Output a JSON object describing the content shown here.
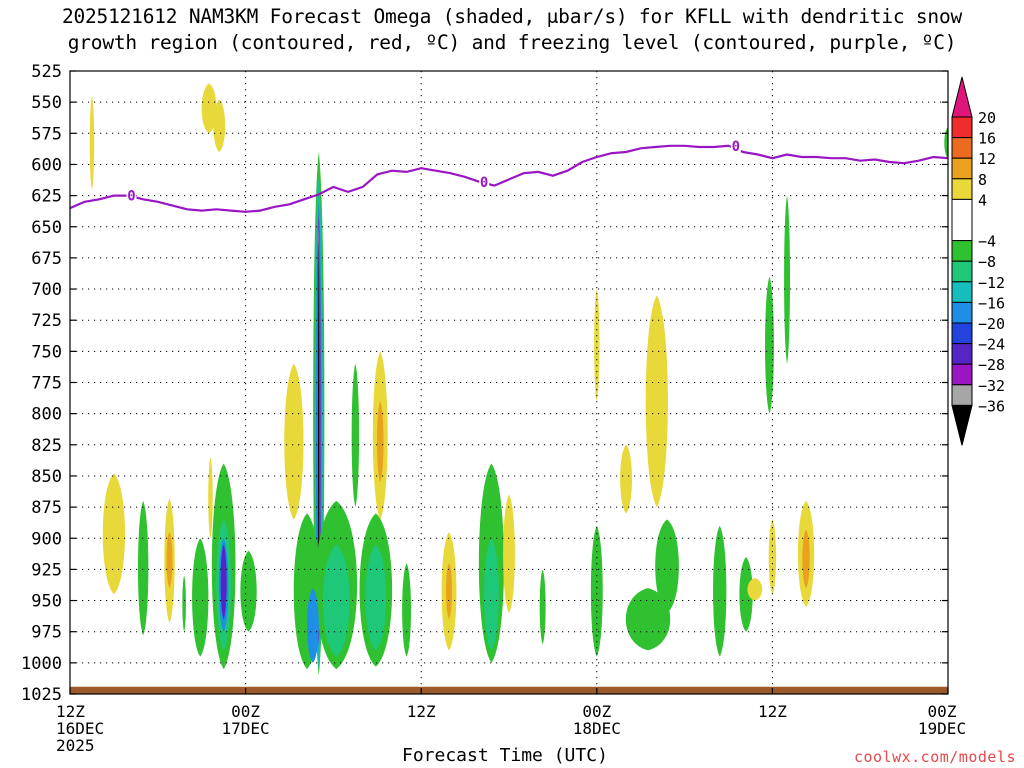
{
  "chart_data": {
    "type": "time-height cross-section",
    "title_line1": "2025121612 NAM3KM Forecast Omega (shaded, μbar/s) for KFLL with dendritic snow",
    "title_line2": "growth region (contoured, red, ºC) and freezing level (contoured, purple, ºC)",
    "xlabel": "Forecast Time (UTC)",
    "x_ticks": [
      {
        "hour": 0,
        "lines": [
          "12Z",
          "16DEC",
          "2025"
        ]
      },
      {
        "hour": 12,
        "lines": [
          "00Z",
          "17DEC"
        ]
      },
      {
        "hour": 24,
        "lines": [
          "12Z"
        ]
      },
      {
        "hour": 36,
        "lines": [
          "00Z",
          "18DEC"
        ]
      },
      {
        "hour": 48,
        "lines": [
          "12Z"
        ]
      },
      {
        "hour": 60,
        "lines": [
          "00Z",
          "19DEC"
        ]
      }
    ],
    "x_range_hours": [
      0,
      60
    ],
    "y_ticks": [
      "525",
      "550",
      "575",
      "600",
      "625",
      "650",
      "675",
      "700",
      "725",
      "750",
      "775",
      "800",
      "825",
      "850",
      "875",
      "900",
      "925",
      "950",
      "975",
      "1000",
      "1025"
    ],
    "y_range_mb": [
      525,
      1025
    ],
    "colorbar": {
      "labels": [
        "20",
        "16",
        "12",
        "8",
        "4",
        "−4",
        "−8",
        "−12",
        "−16",
        "−20",
        "−24",
        "−28",
        "−32",
        "−36"
      ],
      "colors": [
        "#e0157a",
        "#f02c2c",
        "#ec6b1f",
        "#e8a21e",
        "#e8d83a",
        "#ffffff",
        "#2fc12f",
        "#1fc779",
        "#16bdbd",
        "#1e8ee6",
        "#2244dd",
        "#5524c4",
        "#9a16c4",
        "#a6a6a6",
        "#000000"
      ]
    },
    "freezing_level_label": "0",
    "freezing_level": [
      {
        "hour": 0,
        "mb": 635
      },
      {
        "hour": 1,
        "mb": 630
      },
      {
        "hour": 2,
        "mb": 628
      },
      {
        "hour": 3,
        "mb": 625
      },
      {
        "hour": 4,
        "mb": 625
      },
      {
        "hour": 5,
        "mb": 628
      },
      {
        "hour": 6,
        "mb": 630
      },
      {
        "hour": 7,
        "mb": 633
      },
      {
        "hour": 8,
        "mb": 636
      },
      {
        "hour": 9,
        "mb": 637
      },
      {
        "hour": 10,
        "mb": 636
      },
      {
        "hour": 11,
        "mb": 637
      },
      {
        "hour": 12,
        "mb": 638
      },
      {
        "hour": 13,
        "mb": 637
      },
      {
        "hour": 14,
        "mb": 634
      },
      {
        "hour": 15,
        "mb": 632
      },
      {
        "hour": 16,
        "mb": 628
      },
      {
        "hour": 17,
        "mb": 624
      },
      {
        "hour": 18,
        "mb": 618
      },
      {
        "hour": 19,
        "mb": 622
      },
      {
        "hour": 20,
        "mb": 618
      },
      {
        "hour": 21,
        "mb": 608
      },
      {
        "hour": 22,
        "mb": 605
      },
      {
        "hour": 23,
        "mb": 606
      },
      {
        "hour": 24,
        "mb": 603
      },
      {
        "hour": 25,
        "mb": 605
      },
      {
        "hour": 26,
        "mb": 607
      },
      {
        "hour": 27,
        "mb": 610
      },
      {
        "hour": 28,
        "mb": 614
      },
      {
        "hour": 29,
        "mb": 617
      },
      {
        "hour": 30,
        "mb": 612
      },
      {
        "hour": 31,
        "mb": 607
      },
      {
        "hour": 32,
        "mb": 606
      },
      {
        "hour": 33,
        "mb": 609
      },
      {
        "hour": 34,
        "mb": 605
      },
      {
        "hour": 35,
        "mb": 598
      },
      {
        "hour": 36,
        "mb": 594
      },
      {
        "hour": 37,
        "mb": 591
      },
      {
        "hour": 38,
        "mb": 590
      },
      {
        "hour": 39,
        "mb": 587
      },
      {
        "hour": 40,
        "mb": 586
      },
      {
        "hour": 41,
        "mb": 585
      },
      {
        "hour": 42,
        "mb": 585
      },
      {
        "hour": 43,
        "mb": 586
      },
      {
        "hour": 44,
        "mb": 586
      },
      {
        "hour": 45,
        "mb": 585
      },
      {
        "hour": 46,
        "mb": 590
      },
      {
        "hour": 47,
        "mb": 592
      },
      {
        "hour": 48,
        "mb": 595
      },
      {
        "hour": 49,
        "mb": 592
      },
      {
        "hour": 50,
        "mb": 594
      },
      {
        "hour": 51,
        "mb": 594
      },
      {
        "hour": 52,
        "mb": 595
      },
      {
        "hour": 53,
        "mb": 595
      },
      {
        "hour": 54,
        "mb": 597
      },
      {
        "hour": 55,
        "mb": 596
      },
      {
        "hour": 56,
        "mb": 598
      },
      {
        "hour": 57,
        "mb": 599
      },
      {
        "hour": 58,
        "mb": 597
      },
      {
        "hour": 59,
        "mb": 594
      },
      {
        "hour": 60,
        "mb": 595
      }
    ],
    "omega_features": [
      {
        "hour": 1.5,
        "top": 545,
        "bot": 620,
        "w": 0.15,
        "color": "#e8d83a"
      },
      {
        "hour": 9.5,
        "top": 535,
        "bot": 575,
        "w": 0.5,
        "color": "#e8d83a"
      },
      {
        "hour": 10.2,
        "top": 548,
        "bot": 590,
        "w": 0.4,
        "color": "#e8d83a"
      },
      {
        "hour": 3.0,
        "top": 848,
        "bot": 945,
        "w": 0.75,
        "color": "#e8d83a"
      },
      {
        "hour": 5.0,
        "top": 870,
        "bot": 978,
        "w": 0.35,
        "color": "#2fc12f"
      },
      {
        "hour": 6.8,
        "top": 868,
        "bot": 968,
        "w": 0.35,
        "color": "#e8d83a"
      },
      {
        "hour": 6.8,
        "top": 895,
        "bot": 940,
        "w": 0.2,
        "color": "#e8a21e"
      },
      {
        "hour": 7.8,
        "top": 930,
        "bot": 975,
        "w": 0.12,
        "color": "#2fc12f"
      },
      {
        "hour": 9.6,
        "top": 835,
        "bot": 900,
        "w": 0.15,
        "color": "#e8d83a"
      },
      {
        "hour": 10.5,
        "top": 840,
        "bot": 1005,
        "w": 0.8,
        "color": "#2fc12f"
      },
      {
        "hour": 10.5,
        "top": 885,
        "bot": 990,
        "w": 0.5,
        "color": "#1fc779"
      },
      {
        "hour": 10.5,
        "top": 900,
        "bot": 975,
        "w": 0.32,
        "color": "#1e8ee6"
      },
      {
        "hour": 10.5,
        "top": 905,
        "bot": 965,
        "w": 0.2,
        "color": "#5524c4"
      },
      {
        "hour": 8.9,
        "top": 900,
        "bot": 995,
        "w": 0.55,
        "color": "#2fc12f"
      },
      {
        "hour": 12.2,
        "top": 910,
        "bot": 975,
        "w": 0.55,
        "color": "#2fc12f"
      },
      {
        "hour": 17.0,
        "top": 590,
        "bot": 1010,
        "w": 0.38,
        "color": "#2fc12f"
      },
      {
        "hour": 17.0,
        "top": 610,
        "bot": 1005,
        "w": 0.28,
        "color": "#16bdbd"
      },
      {
        "hour": 17.0,
        "top": 630,
        "bot": 990,
        "w": 0.2,
        "color": "#1e8ee6"
      },
      {
        "hour": 17.0,
        "top": 640,
        "bot": 985,
        "w": 0.13,
        "color": "#9a16c4"
      },
      {
        "hour": 17.0,
        "top": 650,
        "bot": 975,
        "w": 0.08,
        "color": "#a6a6a6"
      },
      {
        "hour": 17.0,
        "top": 660,
        "bot": 960,
        "w": 0.05,
        "color": "#000000"
      },
      {
        "hour": 15.3,
        "top": 760,
        "bot": 885,
        "w": 0.65,
        "color": "#e8d83a"
      },
      {
        "hour": 16.2,
        "top": 880,
        "bot": 1005,
        "w": 0.9,
        "color": "#2fc12f"
      },
      {
        "hour": 18.2,
        "top": 870,
        "bot": 1005,
        "w": 1.4,
        "color": "#2fc12f"
      },
      {
        "hour": 18.2,
        "top": 905,
        "bot": 995,
        "w": 0.9,
        "color": "#1fc779"
      },
      {
        "hour": 16.6,
        "top": 940,
        "bot": 1000,
        "w": 0.4,
        "color": "#1e8ee6"
      },
      {
        "hour": 21.2,
        "top": 750,
        "bot": 885,
        "w": 0.5,
        "color": "#e8d83a"
      },
      {
        "hour": 21.2,
        "top": 790,
        "bot": 855,
        "w": 0.22,
        "color": "#e8a21e"
      },
      {
        "hour": 19.5,
        "top": 760,
        "bot": 875,
        "w": 0.25,
        "color": "#2fc12f"
      },
      {
        "hour": 20.9,
        "top": 880,
        "bot": 1003,
        "w": 1.1,
        "color": "#2fc12f"
      },
      {
        "hour": 20.9,
        "top": 905,
        "bot": 990,
        "w": 0.7,
        "color": "#1fc779"
      },
      {
        "hour": 23.0,
        "top": 920,
        "bot": 995,
        "w": 0.3,
        "color": "#2fc12f"
      },
      {
        "hour": 25.9,
        "top": 895,
        "bot": 990,
        "w": 0.5,
        "color": "#e8d83a"
      },
      {
        "hour": 25.9,
        "top": 920,
        "bot": 965,
        "w": 0.2,
        "color": "#e8a21e"
      },
      {
        "hour": 28.8,
        "top": 840,
        "bot": 1000,
        "w": 0.85,
        "color": "#2fc12f"
      },
      {
        "hour": 28.8,
        "top": 900,
        "bot": 990,
        "w": 0.5,
        "color": "#1fc779"
      },
      {
        "hour": 30.0,
        "top": 865,
        "bot": 960,
        "w": 0.4,
        "color": "#e8d83a"
      },
      {
        "hour": 32.3,
        "top": 925,
        "bot": 985,
        "w": 0.2,
        "color": "#2fc12f"
      },
      {
        "hour": 36.0,
        "top": 700,
        "bot": 790,
        "w": 0.18,
        "color": "#e8d83a"
      },
      {
        "hour": 36.0,
        "top": 890,
        "bot": 995,
        "w": 0.4,
        "color": "#2fc12f"
      },
      {
        "hour": 38.0,
        "top": 825,
        "bot": 880,
        "w": 0.4,
        "color": "#e8d83a"
      },
      {
        "hour": 40.1,
        "top": 705,
        "bot": 875,
        "w": 0.75,
        "color": "#e8d83a"
      },
      {
        "hour": 39.5,
        "top": 940,
        "bot": 990,
        "w": 1.5,
        "color": "#2fc12f"
      },
      {
        "hour": 40.8,
        "top": 885,
        "bot": 960,
        "w": 0.8,
        "color": "#2fc12f"
      },
      {
        "hour": 44.4,
        "top": 890,
        "bot": 995,
        "w": 0.45,
        "color": "#2fc12f"
      },
      {
        "hour": 46.2,
        "top": 915,
        "bot": 975,
        "w": 0.45,
        "color": "#2fc12f"
      },
      {
        "hour": 47.8,
        "top": 690,
        "bot": 800,
        "w": 0.3,
        "color": "#2fc12f"
      },
      {
        "hour": 49.0,
        "top": 625,
        "bot": 760,
        "w": 0.2,
        "color": "#2fc12f"
      },
      {
        "hour": 48.0,
        "top": 885,
        "bot": 945,
        "w": 0.25,
        "color": "#e8d83a"
      },
      {
        "hour": 46.8,
        "top": 932,
        "bot": 950,
        "w": 0.5,
        "color": "#e8d83a"
      },
      {
        "hour": 50.3,
        "top": 870,
        "bot": 955,
        "w": 0.55,
        "color": "#e8d83a"
      },
      {
        "hour": 50.3,
        "top": 893,
        "bot": 940,
        "w": 0.25,
        "color": "#e8a21e"
      },
      {
        "hour": 60.0,
        "top": 570,
        "bot": 595,
        "w": 0.25,
        "color": "#2fc12f"
      }
    ],
    "terrain_mb": 1020,
    "terrain_color": "#9c5a2a"
  },
  "credit": "coolwx.com/models"
}
